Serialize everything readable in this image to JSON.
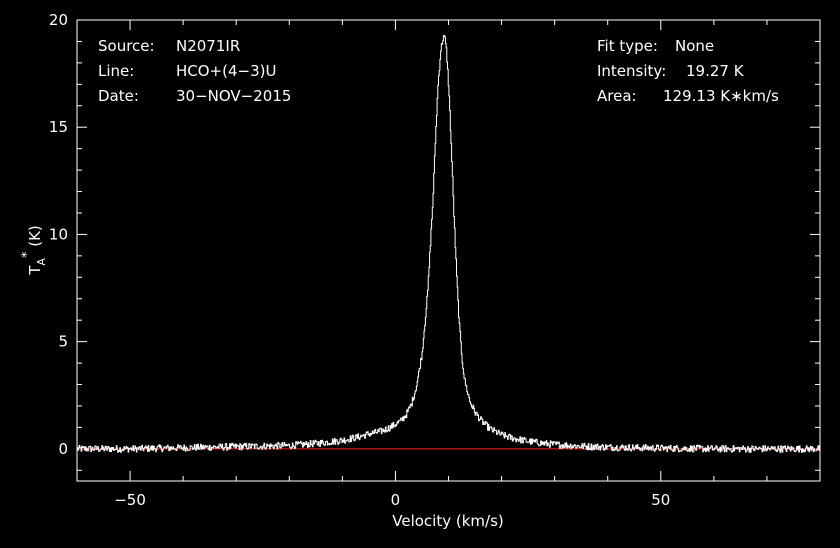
{
  "chart_data": {
    "type": "line",
    "xlabel": "Velocity (km/s)",
    "ylabel": "T",
    "ylabel_sub": "A",
    "ylabel_sup": "*",
    "ylabel_unit": " (K)",
    "xlim": [
      -60,
      80
    ],
    "ylim": [
      -1.5,
      20
    ],
    "xticks": [
      -50,
      0,
      50
    ],
    "xtick_labels": [
      "−50",
      "0",
      "50"
    ],
    "yticks": [
      0,
      5,
      10,
      15,
      20
    ],
    "ytick_labels": [
      "0",
      "5",
      "10",
      "15",
      "20"
    ],
    "grid": false,
    "baseline": {
      "y": 0,
      "color": "#ff2020"
    },
    "colors": {
      "background": "#000000",
      "axes": "#ffffff",
      "spectrum": "#ffffff"
    },
    "series": [
      {
        "x": [
          -60,
          -50,
          -40,
          -30,
          -20,
          -15,
          -10,
          -7,
          -5,
          -3,
          -1,
          1,
          2,
          3,
          4,
          5,
          6,
          7,
          7.5,
          8,
          8.5,
          9,
          9.3,
          9.6,
          10,
          10.5,
          11,
          11.5,
          12,
          12.5,
          13,
          14,
          15,
          16,
          17,
          18,
          20,
          22,
          25,
          28,
          30,
          35,
          40,
          50,
          60,
          70,
          80
        ],
        "y": [
          0,
          0,
          0.05,
          0.1,
          0.15,
          0.25,
          0.4,
          0.55,
          0.7,
          0.8,
          1.0,
          1.3,
          1.6,
          2.1,
          3.0,
          4.5,
          7.2,
          11.5,
          14.5,
          17.0,
          18.6,
          19.27,
          19.1,
          18.5,
          16.8,
          14.0,
          10.8,
          8.0,
          5.8,
          4.2,
          3.2,
          2.2,
          1.7,
          1.35,
          1.1,
          0.9,
          0.65,
          0.5,
          0.35,
          0.25,
          0.2,
          0.12,
          0.08,
          0.03,
          0,
          0,
          0
        ]
      }
    ]
  },
  "info": {
    "source_label": "Source:",
    "source_value": "N2071IR",
    "line_label": "Line:",
    "line_value": "HCO+(4−3)U",
    "date_label": "Date:",
    "date_value": "30−NOV−2015",
    "fit_label": "Fit type:",
    "fit_value": "None",
    "intensity_label": "Intensity:",
    "intensity_value": "19.27 K",
    "area_label": "Area:",
    "area_value": "129.13 K∗km/s"
  }
}
